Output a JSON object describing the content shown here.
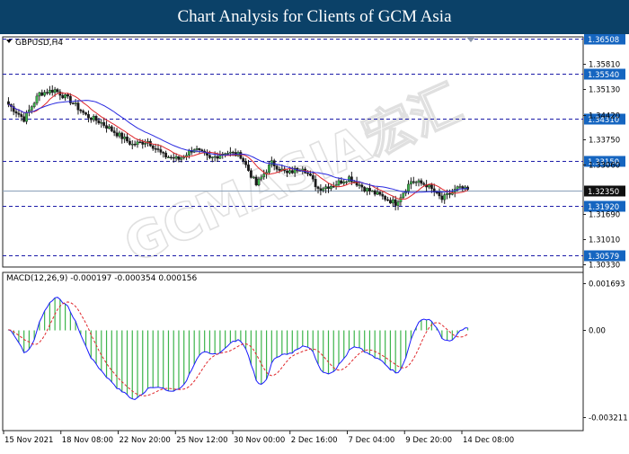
{
  "header": {
    "title": "Chart Analysis for Clients of GCM Asia"
  },
  "symbol_label": "GBPUSD,H4",
  "watermark": "GCMASIA宏汇",
  "price_panel": {
    "ticks": [
      {
        "label": "1.35810",
        "v": 1.3581
      },
      {
        "label": "1.35130",
        "v": 1.3513
      },
      {
        "label": "1.34420",
        "v": 1.3442
      },
      {
        "label": "1.33750",
        "v": 1.3375
      },
      {
        "label": "1.33060",
        "v": 1.3306
      },
      {
        "label": "1.31690",
        "v": 1.3169
      },
      {
        "label": "1.31010",
        "v": 1.3101
      },
      {
        "label": "1.30330",
        "v": 1.3033
      }
    ],
    "levels": [
      {
        "label": "1.36508",
        "v": 1.36508
      },
      {
        "label": "1.35540",
        "v": 1.3554
      },
      {
        "label": "1.34310",
        "v": 1.3431
      },
      {
        "label": "1.33150",
        "v": 1.3315
      },
      {
        "label": "1.31920",
        "v": 1.3192
      },
      {
        "label": "1.30579",
        "v": 1.30579
      }
    ],
    "current_price": {
      "label": "1.32350",
      "v": 1.3235
    }
  },
  "macd_panel": {
    "label": "MACD(12,26,9) -0.000197 -0.000354 0.000156",
    "ticks": [
      {
        "label": "0.001693",
        "v": 0.001693
      },
      {
        "label": "0.00",
        "v": 0
      },
      {
        "label": "-0.003211",
        "v": -0.003211
      }
    ]
  },
  "x_axis": {
    "labels": [
      "15 Nov 2021",
      "18 Nov 08:00",
      "22 Nov 20:00",
      "25 Nov 12:00",
      "30 Nov 00:00",
      "2 Dec 16:00",
      "7 Dec 04:00",
      "9 Dec 20:00",
      "14 Dec 08:00"
    ]
  },
  "colors": {
    "header_bg": "#0b4168",
    "bull": "#3cb44b",
    "bear": "#1a1a1a",
    "ma_fast": "#e0282d",
    "ma_slow": "#2a2ae0",
    "level_line": "#1b1ba8",
    "level_box": "#1565c0",
    "current_box": "#0f0f0f",
    "macd_hist": "#3cb44b",
    "macd_main": "#1a1aff",
    "macd_signal": "#e0282d"
  },
  "chart_data": {
    "type": "candlestick",
    "symbol": "GBPUSD",
    "timeframe": "H4",
    "x_range": [
      "15 Nov 2021",
      "14 Dec 08:00"
    ],
    "y_range": [
      1.3025,
      1.3655
    ],
    "anchors": [
      [
        0,
        1.347
      ],
      [
        6,
        1.343
      ],
      [
        12,
        1.35
      ],
      [
        18,
        1.351
      ],
      [
        24,
        1.348
      ],
      [
        30,
        1.344
      ],
      [
        36,
        1.342
      ],
      [
        42,
        1.339
      ],
      [
        48,
        1.336
      ],
      [
        54,
        1.337
      ],
      [
        60,
        1.333
      ],
      [
        66,
        1.332
      ],
      [
        72,
        1.335
      ],
      [
        78,
        1.332
      ],
      [
        84,
        1.334
      ],
      [
        90,
        1.333
      ],
      [
        96,
        1.325
      ],
      [
        102,
        1.331
      ],
      [
        108,
        1.328
      ],
      [
        114,
        1.33
      ],
      [
        120,
        1.324
      ],
      [
        126,
        1.325
      ],
      [
        132,
        1.327
      ],
      [
        138,
        1.324
      ],
      [
        144,
        1.322
      ],
      [
        150,
        1.32
      ],
      [
        156,
        1.326
      ],
      [
        162,
        1.325
      ],
      [
        168,
        1.321
      ],
      [
        174,
        1.324
      ],
      [
        178,
        1.3235
      ]
    ],
    "indicators": [
      "MA fast (red)",
      "MA slow (blue)",
      "MACD(12,26,9)"
    ]
  }
}
